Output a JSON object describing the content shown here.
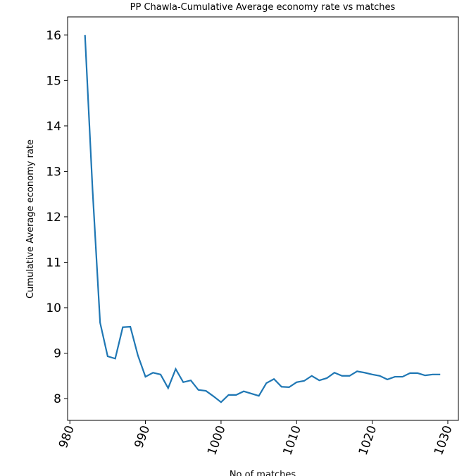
{
  "chart_data": {
    "type": "line",
    "title": "PP Chawla-Cumulative Average economy rate vs matches",
    "xlabel": "No of matches",
    "ylabel": "Cumulative Average economy rate",
    "x": [
      982,
      983,
      984,
      985,
      986,
      987,
      988,
      989,
      990,
      991,
      992,
      993,
      994,
      995,
      996,
      997,
      998,
      999,
      1000,
      1001,
      1002,
      1003,
      1004,
      1005,
      1006,
      1007,
      1008,
      1009,
      1010,
      1011,
      1012,
      1013,
      1014,
      1015,
      1016,
      1017,
      1018,
      1019,
      1020,
      1021,
      1022,
      1023,
      1024,
      1025,
      1026,
      1027,
      1028,
      1029
    ],
    "series": [
      {
        "name": "Cumulative Average economy rate",
        "color": "#1f77b4",
        "values": [
          16.0,
          12.6,
          9.67,
          8.93,
          8.88,
          9.57,
          9.58,
          8.95,
          8.48,
          8.57,
          8.53,
          8.23,
          8.65,
          8.36,
          8.4,
          8.19,
          8.17,
          8.05,
          7.92,
          8.08,
          8.08,
          8.16,
          8.11,
          8.06,
          8.34,
          8.43,
          8.26,
          8.25,
          8.36,
          8.39,
          8.5,
          8.4,
          8.45,
          8.57,
          8.5,
          8.5,
          8.6,
          8.57,
          8.53,
          8.5,
          8.42,
          8.48,
          8.48,
          8.56,
          8.56,
          8.51,
          8.53,
          8.53
        ]
      }
    ],
    "xlim": [
      979.7,
      1031.4
    ],
    "ylim": [
      7.52,
      16.4
    ],
    "xticks": [
      980,
      990,
      1000,
      1010,
      1020,
      1030
    ],
    "yticks": [
      8,
      9,
      10,
      11,
      12,
      13,
      14,
      15,
      16
    ]
  }
}
